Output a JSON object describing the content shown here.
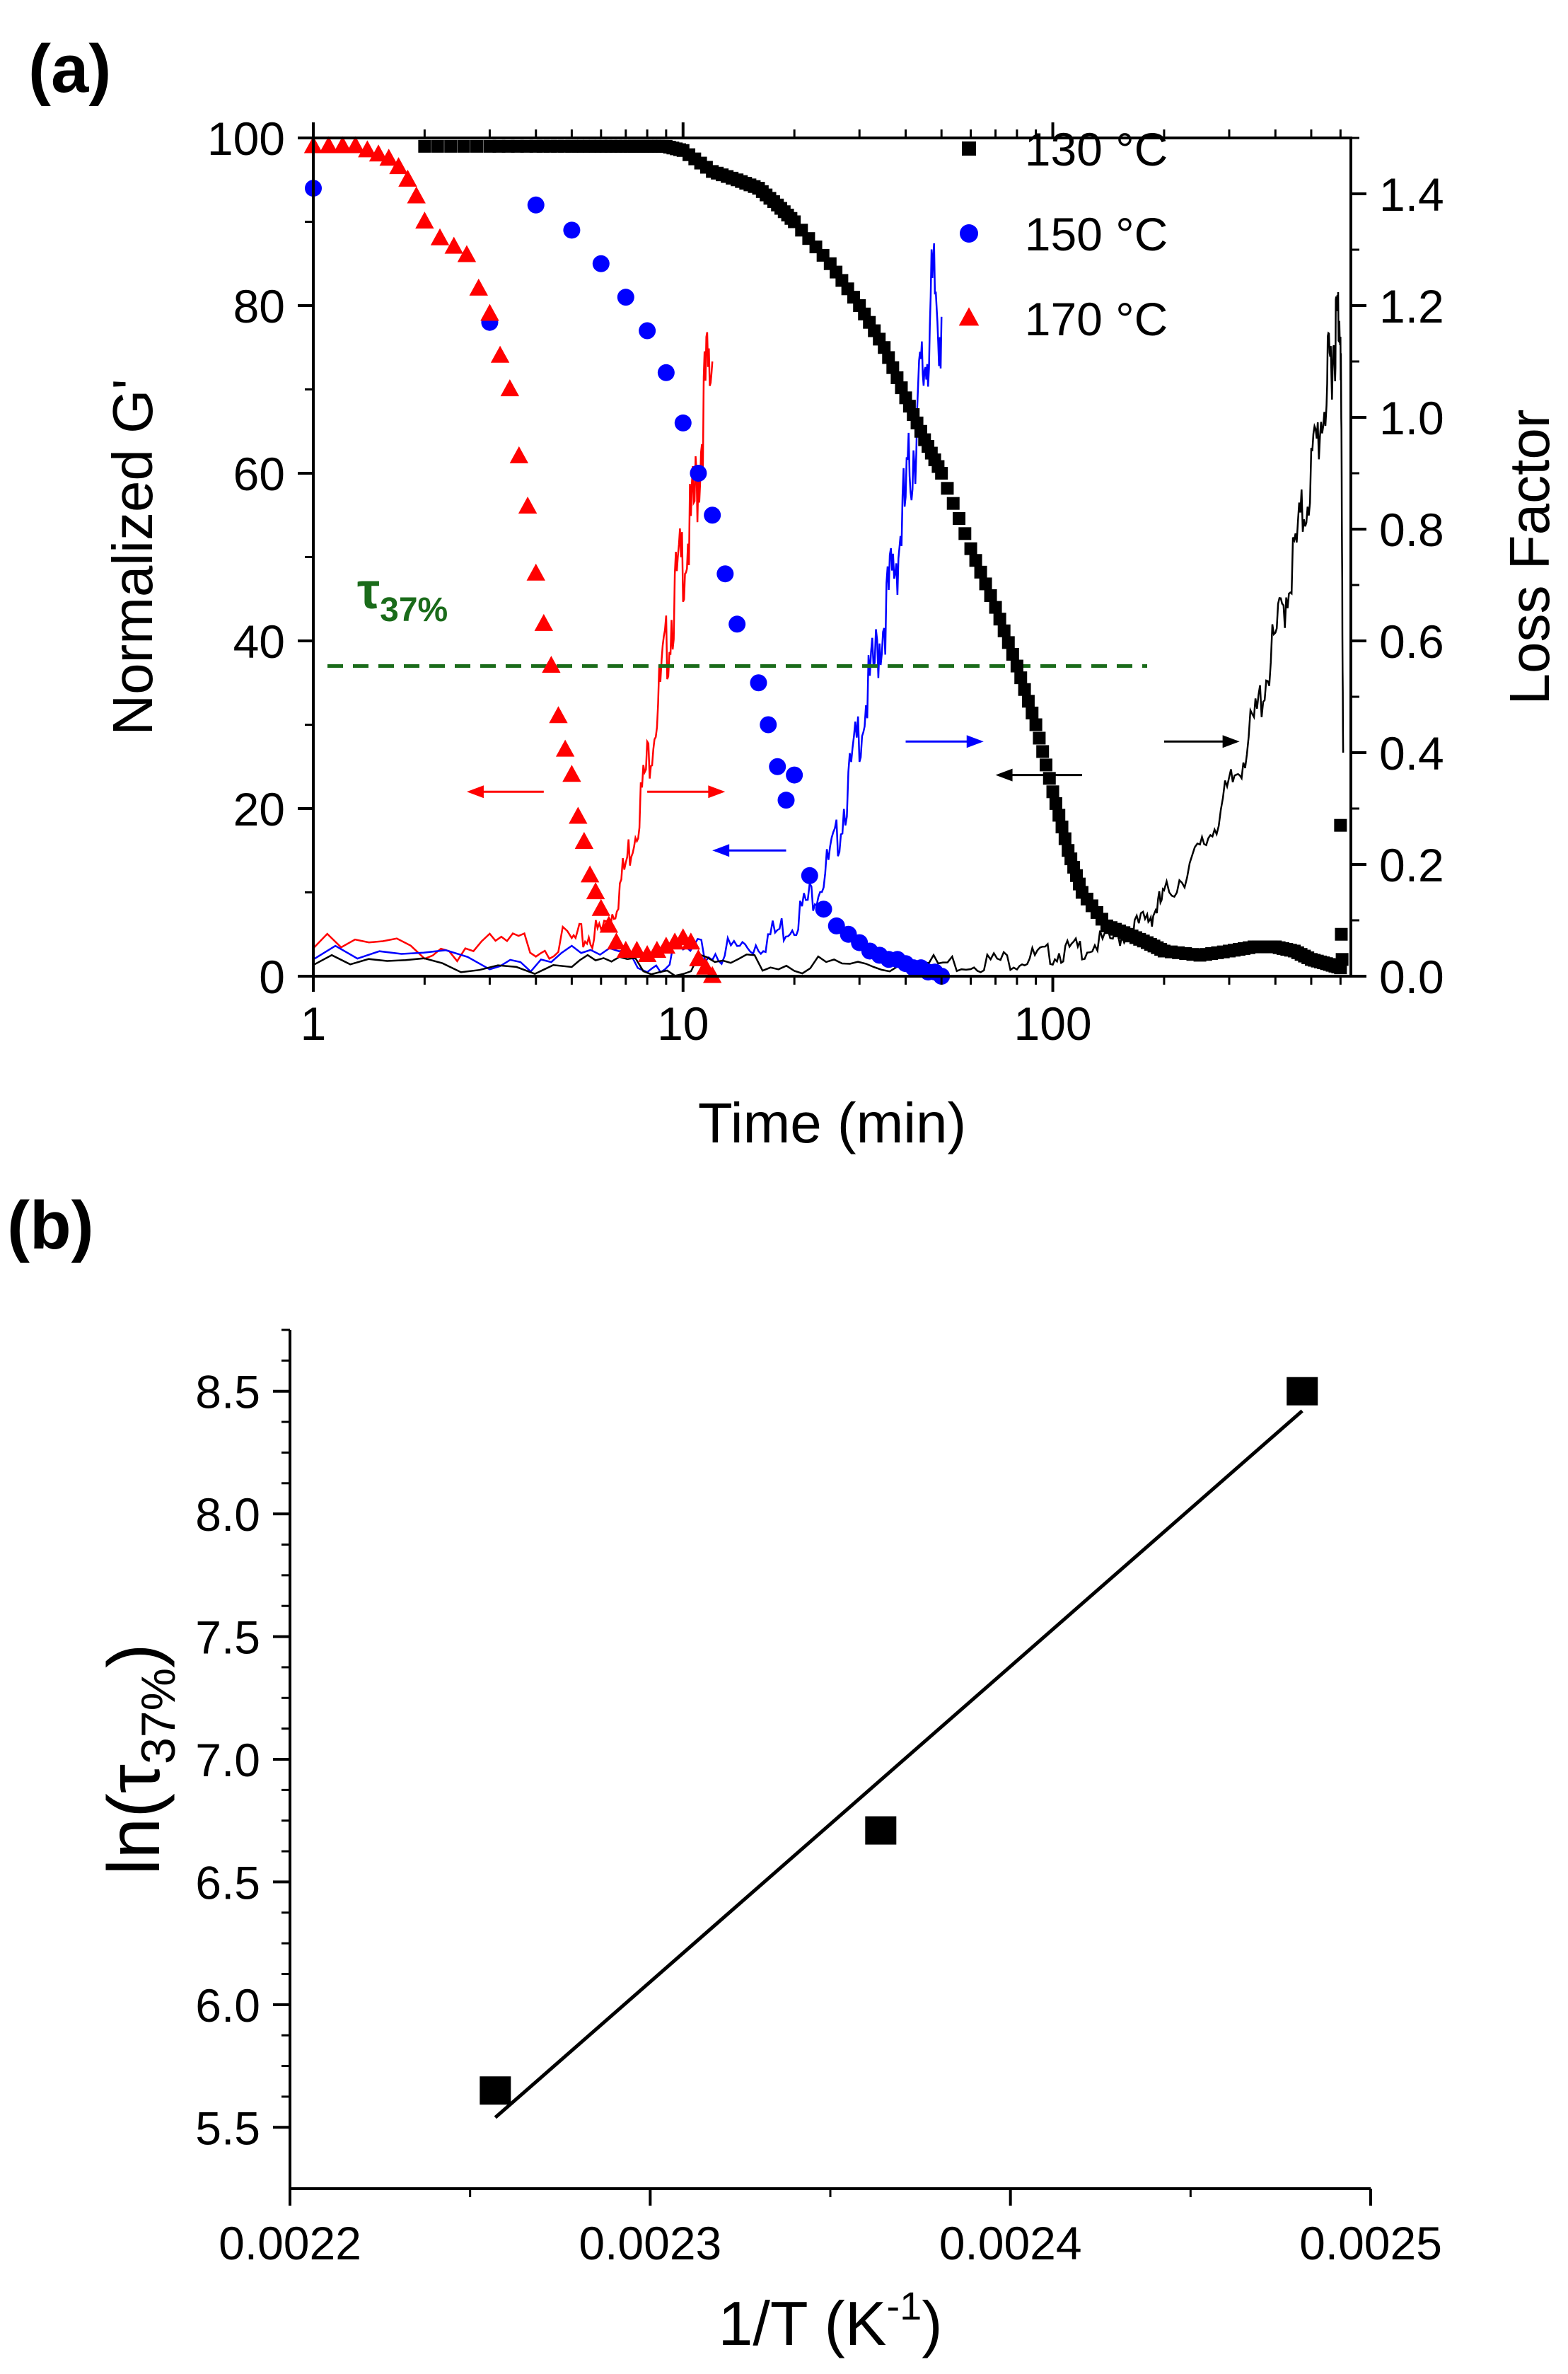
{
  "chart_data": [
    {
      "panel_label": "(a)",
      "type": "scatter",
      "xlabel": "Time (min)",
      "ylabel": "Normalized G'",
      "y2label": "Loss Factor",
      "xscale": "log",
      "xlim": [
        1,
        640
      ],
      "ylim": [
        0,
        100
      ],
      "y2lim": [
        0,
        1.5
      ],
      "x_ticks": [
        1,
        10,
        100
      ],
      "x_tick_labels": [
        "1",
        "10",
        "100"
      ],
      "y_ticks": [
        0,
        20,
        40,
        60,
        80,
        100
      ],
      "y_tick_labels": [
        "0",
        "20",
        "40",
        "60",
        "80",
        "100"
      ],
      "y2_ticks": [
        0,
        0.2,
        0.4,
        0.6,
        0.8,
        1.0,
        1.2,
        1.4
      ],
      "y2_tick_labels": [
        "0.0",
        "0.2",
        "0.4",
        "0.6",
        "0.8",
        "1.0",
        "1.2",
        "1.4"
      ],
      "legend_position": "top-right",
      "legend": [
        {
          "label": "130 °C",
          "color": "#000000",
          "marker": "square"
        },
        {
          "label": "150 °C",
          "color": "#0000ff",
          "marker": "circle"
        },
        {
          "label": "170 °C",
          "color": "#ff0000",
          "marker": "triangle"
        }
      ],
      "annotation": {
        "text": "τ",
        "subscript": "37%",
        "color": "#1a6b1a"
      },
      "reference_line": {
        "y": 37,
        "x_range": [
          1,
          180
        ],
        "style": "dashed",
        "color": "#1a6b1a"
      },
      "series": [
        {
          "name": "130 °C",
          "axis": "left",
          "color": "#000000",
          "marker": "square",
          "marker_size": 9,
          "x": [
            2,
            3,
            4,
            5,
            6,
            7,
            8,
            9,
            10,
            12,
            14,
            16,
            18,
            20,
            25,
            30,
            35,
            40,
            45,
            50,
            60,
            70,
            80,
            90,
            100,
            110,
            120,
            140,
            160,
            180,
            200,
            250,
            300,
            350,
            400,
            450,
            500,
            550,
            600
          ],
          "values": [
            99,
            99,
            99,
            99,
            99,
            99,
            99,
            99,
            98.5,
            96,
            95,
            94,
            92,
            90,
            85,
            80,
            75,
            69,
            64,
            60,
            51,
            44,
            37,
            30,
            22,
            15,
            10,
            6,
            5,
            4,
            3,
            2.5,
            3,
            3.5,
            3.5,
            3,
            2,
            1.5,
            1
          ]
        },
        {
          "name": "130 °C jump points",
          "axis": "left",
          "color": "#000000",
          "marker": "square",
          "marker_size": 9,
          "x": [
            600,
            603,
            606
          ],
          "values": [
            18,
            5,
            2
          ]
        },
        {
          "name": "150 °C",
          "axis": "left",
          "color": "#0000ff",
          "marker": "circle",
          "marker_size": 12,
          "x": [
            1,
            3,
            4,
            5,
            6,
            7,
            8,
            9,
            10,
            11,
            12,
            13,
            14,
            16,
            17,
            18,
            19,
            20,
            22,
            24,
            26,
            28,
            30,
            32,
            34,
            36,
            38,
            40,
            42,
            44,
            46,
            48,
            50
          ],
          "values": [
            94,
            78,
            92,
            89,
            85,
            81,
            77,
            72,
            66,
            60,
            55,
            48,
            42,
            35,
            30,
            25,
            21,
            24,
            12,
            8,
            6,
            5,
            4,
            3,
            2.5,
            2,
            2,
            1.5,
            1,
            1,
            0.5,
            0.5,
            0
          ]
        },
        {
          "name": "170 °C",
          "axis": "left",
          "color": "#ff0000",
          "marker": "triangle",
          "marker_size": 12,
          "x": [
            1,
            1.1,
            1.2,
            1.3,
            1.4,
            1.5,
            1.6,
            1.7,
            1.8,
            1.9,
            2,
            2.2,
            2.4,
            2.6,
            2.8,
            3,
            3.2,
            3.4,
            3.6,
            3.8,
            4,
            4.2,
            4.4,
            4.6,
            4.8,
            5,
            5.2,
            5.4,
            5.6,
            5.8,
            6,
            6.3,
            6.6,
            7,
            7.5,
            8,
            8.5,
            9,
            9.5,
            10,
            10.5,
            11,
            11.5,
            12
          ],
          "values": [
            99,
            99,
            99,
            99,
            98.5,
            98,
            97.5,
            96.5,
            95,
            93,
            90,
            88,
            87,
            86,
            82,
            79,
            74,
            70,
            62,
            56,
            48,
            42,
            37,
            31,
            27,
            24,
            19,
            16,
            12,
            10,
            8,
            6,
            4,
            3,
            3,
            2.5,
            3,
            3.5,
            4,
            4.5,
            4,
            2,
            1,
            0
          ]
        },
        {
          "name": "170 °C loss factor",
          "axis": "right",
          "type": "line",
          "color": "#ff0000",
          "x": [
            1,
            2,
            3,
            4,
            5,
            5.5,
            6,
            6.5,
            7,
            7.5,
            8,
            8.5,
            9,
            9.5,
            10,
            10.5,
            11,
            11.5,
            12
          ],
          "values": [
            0.05,
            0.05,
            0.05,
            0.06,
            0.06,
            0.07,
            0.08,
            0.12,
            0.2,
            0.28,
            0.38,
            0.48,
            0.58,
            0.68,
            0.75,
            0.8,
            0.9,
            1.05,
            1.1
          ]
        },
        {
          "name": "150 °C loss factor",
          "axis": "right",
          "type": "line",
          "color": "#0000ff",
          "x": [
            1,
            3,
            5,
            8,
            10,
            12,
            14,
            16,
            18,
            20,
            22,
            24,
            26,
            28,
            30,
            32,
            34,
            36,
            38,
            40,
            42,
            44,
            46,
            48,
            50
          ],
          "values": [
            0.03,
            0.03,
            0.03,
            0.03,
            0.04,
            0.04,
            0.05,
            0.06,
            0.08,
            0.1,
            0.14,
            0.18,
            0.24,
            0.34,
            0.44,
            0.52,
            0.6,
            0.68,
            0.76,
            0.85,
            0.95,
            1.05,
            1.15,
            1.22,
            1.18
          ]
        },
        {
          "name": "130 °C loss factor",
          "axis": "right",
          "type": "line",
          "color": "#000000",
          "x": [
            1,
            5,
            10,
            20,
            40,
            60,
            80,
            100,
            120,
            150,
            180,
            200,
            250,
            300,
            350,
            400,
            450,
            500,
            550,
            580,
            600,
            610
          ],
          "values": [
            0.02,
            0.02,
            0.02,
            0.02,
            0.02,
            0.025,
            0.03,
            0.04,
            0.05,
            0.07,
            0.1,
            0.14,
            0.22,
            0.33,
            0.45,
            0.6,
            0.75,
            0.9,
            1.05,
            1.15,
            1.2,
            0.4
          ]
        }
      ],
      "arrows": [
        {
          "color": "#ff0000",
          "x_from": 4.2,
          "x_to": 2.6,
          "y": 22,
          "axis_note": "left"
        },
        {
          "color": "#ff0000",
          "x_from": 8,
          "x_to": 13,
          "y": 22,
          "axis_note": "right"
        },
        {
          "color": "#0000ff",
          "x_from": 19,
          "x_to": 12,
          "y": 15,
          "axis_note": "left"
        },
        {
          "color": "#0000ff",
          "x_from": 40,
          "x_to": 65,
          "y": 28,
          "axis_note": "right"
        },
        {
          "color": "#000000",
          "x_from": 120,
          "x_to": 70,
          "y": 24,
          "axis_note": "left"
        },
        {
          "color": "#000000",
          "x_from": 200,
          "x_to": 320,
          "y": 28,
          "axis_note": "right"
        }
      ]
    },
    {
      "panel_label": "(b)",
      "type": "scatter",
      "xlabel": "1/T (K",
      "xlabel_sup": "-1",
      "xlabel_end": ")",
      "ylabel": "ln(τ",
      "ylabel_sub": "37%",
      "ylabel_end": ")",
      "xlim": [
        0.0022,
        0.0025
      ],
      "ylim": [
        5.25,
        8.75
      ],
      "x_ticks": [
        0.0022,
        0.0023,
        0.0024,
        0.0025
      ],
      "x_tick_labels": [
        "0.0022",
        "0.0023",
        "0.0024",
        "0.0025"
      ],
      "y_ticks": [
        5.5,
        6.0,
        6.5,
        7.0,
        7.5,
        8.0,
        8.5
      ],
      "y_tick_labels": [
        "5.5",
        "6.0",
        "6.5",
        "7.0",
        "7.5",
        "8.0",
        "8.5"
      ],
      "series": [
        {
          "name": "data",
          "marker": "square",
          "color": "#000000",
          "x": [
            0.002257,
            0.002364,
            0.002481
          ],
          "values": [
            5.65,
            6.71,
            8.5
          ]
        }
      ],
      "fit_line": {
        "x": [
          0.002257,
          0.002481
        ],
        "y": [
          5.54,
          8.42
        ],
        "color": "#000000"
      }
    }
  ]
}
